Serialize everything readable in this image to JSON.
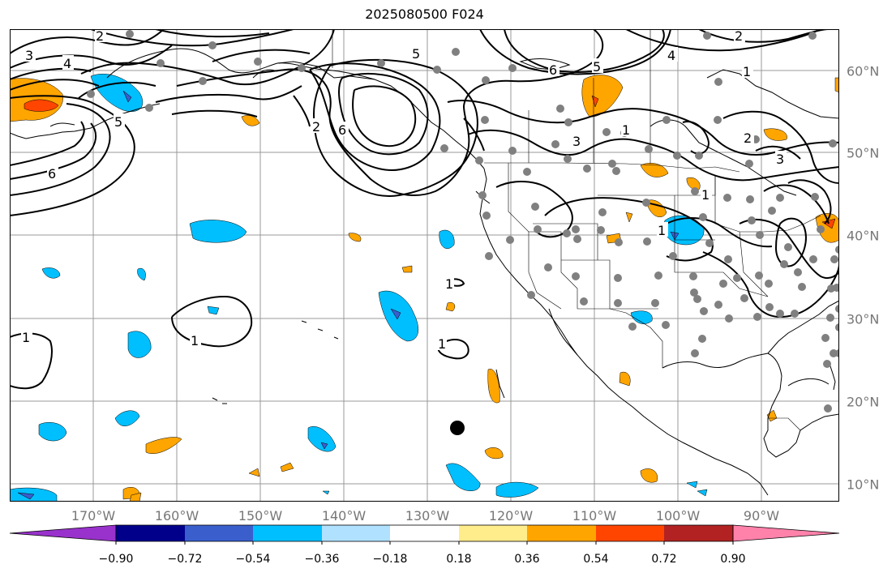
{
  "title": "2025080500 F024",
  "lon_labels": [
    "170°W",
    "160°W",
    "150°W",
    "140°W",
    "130°W",
    "120°W",
    "110°W",
    "100°W",
    "90°W"
  ],
  "lat_labels": [
    "60°N",
    "50°N",
    "40°N",
    "30°N",
    "20°N",
    "10°N"
  ],
  "colorbar": {
    "ticks": [
      "−0.90",
      "−0.72",
      "−0.54",
      "−0.36",
      "−0.18",
      "0.18",
      "0.36",
      "0.54",
      "0.72",
      "0.90"
    ],
    "colors": [
      "#9932cc",
      "#00008b",
      "#3a5fcd",
      "#00bfff",
      "#b0e2ff",
      "#ffffff",
      "#ffec8b",
      "#ffa500",
      "#ff4500",
      "#b22222",
      "#ff82ab"
    ]
  },
  "contour_labels": [
    "1",
    "2",
    "3",
    "4",
    "5",
    "6"
  ],
  "colors": {
    "land_line": "#000000",
    "grid": "#999999",
    "station": "#808080",
    "marker": "#000000"
  }
}
